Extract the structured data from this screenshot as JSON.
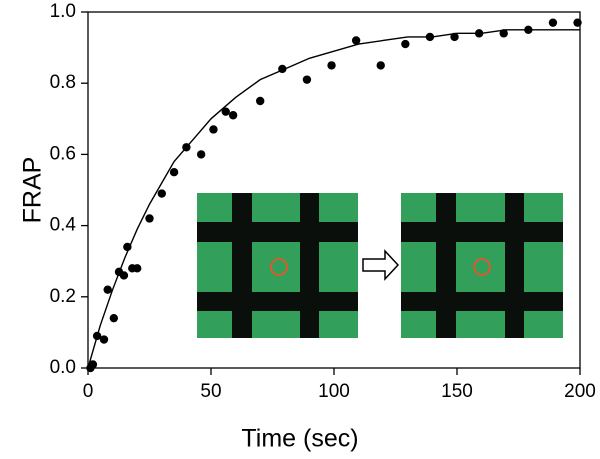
{
  "chart_data": {
    "type": "scatter",
    "xlabel": "Time (sec)",
    "ylabel": "FRAP",
    "x": [
      1,
      2,
      3.7,
      6.5,
      8,
      10.5,
      12.6,
      14.6,
      16,
      18,
      20,
      25,
      30,
      35,
      40,
      46,
      51,
      56,
      59,
      70,
      79,
      89,
      99,
      109,
      119,
      129,
      139,
      149,
      159,
      169,
      179,
      189,
      199
    ],
    "values": [
      0.0,
      0.01,
      0.09,
      0.08,
      0.22,
      0.14,
      0.27,
      0.26,
      0.34,
      0.28,
      0.28,
      0.42,
      0.49,
      0.55,
      0.62,
      0.6,
      0.67,
      0.72,
      0.71,
      0.75,
      0.84,
      0.81,
      0.85,
      0.92,
      0.85,
      0.91,
      0.93,
      0.93,
      0.94,
      0.94,
      0.95,
      0.97,
      0.97
    ],
    "color": "#000000",
    "fit": {
      "x": [
        0,
        5,
        10,
        15,
        20,
        25,
        30,
        35,
        40,
        50,
        60,
        70,
        80,
        90,
        100,
        110,
        120,
        130,
        140,
        150,
        160,
        170,
        180,
        190,
        200
      ],
      "values": [
        0,
        0.12,
        0.22,
        0.31,
        0.39,
        0.46,
        0.52,
        0.58,
        0.62,
        0.7,
        0.76,
        0.81,
        0.84,
        0.87,
        0.89,
        0.91,
        0.92,
        0.93,
        0.93,
        0.94,
        0.94,
        0.95,
        0.95,
        0.95,
        0.95
      ],
      "color": "#000000"
    },
    "xlim": [
      0,
      200
    ],
    "xticks": [
      0,
      50,
      100,
      150,
      200
    ],
    "ylim": [
      0,
      1
    ],
    "yticks": [
      {
        "value": 0,
        "label": "0.0"
      },
      0.2,
      0.4,
      0.6,
      0.8,
      {
        "value": 1,
        "label": "1.0"
      }
    ],
    "grid": false
  }
}
